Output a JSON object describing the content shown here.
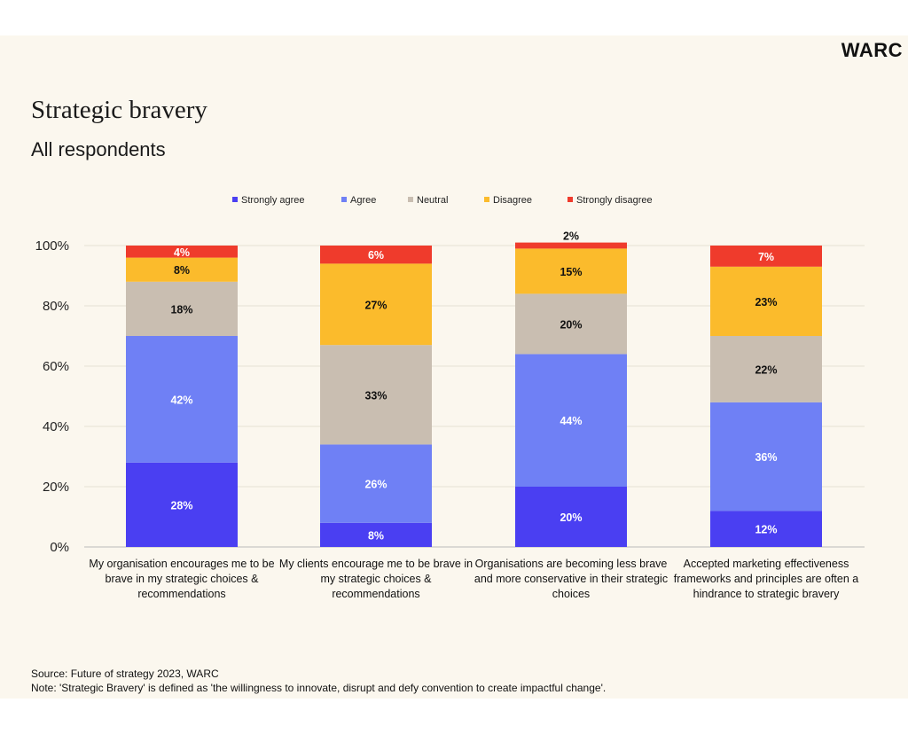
{
  "header": {
    "logo": "WARC",
    "title": "Strategic bravery",
    "subtitle": "All respondents"
  },
  "footer": {
    "source": "Source: Future of strategy 2023, WARC",
    "note": "Note: 'Strategic Bravery' is defined as 'the willingness to innovate, disrupt and defy convention to create impactful change'."
  },
  "chart_data": {
    "type": "bar",
    "stacked": true,
    "categories": [
      "My organisation encourages me to be brave in my strategic choices & recommendations",
      "My clients encourage me to be brave in my strategic choices & recommendations",
      "Organisations are becoming less brave and more conservative in their strategic choices",
      "Accepted marketing effectiveness frameworks and principles are often a hindrance to strategic bravery"
    ],
    "series": [
      {
        "name": "Strongly agree",
        "color": "#4a3ff2",
        "values": [
          28,
          8,
          20,
          12
        ]
      },
      {
        "name": "Agree",
        "color": "#6f80f5",
        "values": [
          42,
          26,
          44,
          36
        ]
      },
      {
        "name": "Neutral",
        "color": "#c9beb1",
        "values": [
          18,
          33,
          20,
          22
        ]
      },
      {
        "name": "Disagree",
        "color": "#fbbb2c",
        "values": [
          8,
          27,
          15,
          23
        ]
      },
      {
        "name": "Strongly disagree",
        "color": "#ef3b2c",
        "values": [
          4,
          6,
          2,
          7
        ]
      }
    ],
    "data_labels": [
      [
        "28%",
        "8%",
        "20%",
        "12%"
      ],
      [
        "42%",
        "26%",
        "44%",
        "36%"
      ],
      [
        "18%",
        "33%",
        "20%",
        "22%"
      ],
      [
        "8%",
        "27%",
        "15%",
        "23%"
      ],
      [
        "4%",
        "6%",
        "2%",
        "7%"
      ]
    ],
    "ylim": [
      0,
      100
    ],
    "yticks": [
      "0%",
      "20%",
      "40%",
      "60%",
      "80%",
      "100%"
    ],
    "ytick_values": [
      0,
      20,
      40,
      60,
      80,
      100
    ],
    "legend_position": "top",
    "grid": true
  }
}
